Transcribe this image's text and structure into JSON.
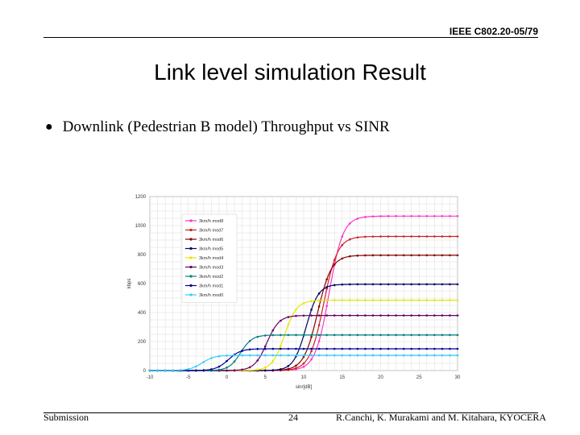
{
  "header": {
    "doc_id": "IEEE C802.20-05/79"
  },
  "slide": {
    "title": "Link level simulation Result",
    "bullet": "Downlink (Pedestrian B model) Throughput vs SINR"
  },
  "footer": {
    "left": "Submission",
    "page": "24",
    "right": "R.Canchi, K. Murakami and M. Kitahara, KYOCERA"
  },
  "chart_data": {
    "type": "line",
    "xlabel": "sinr[dB]",
    "ylabel": "kbps",
    "xlim": [
      -10,
      30
    ],
    "ylim": [
      0,
      1200
    ],
    "xticks": [
      -10,
      -5,
      0,
      5,
      10,
      15,
      20,
      25,
      30
    ],
    "yticks": [
      0,
      200,
      400,
      600,
      800,
      1000,
      1200
    ],
    "grid": true,
    "legend_position": "top-left",
    "series": [
      {
        "name": "3km/h mod8",
        "color": "#ff33cc",
        "max": 1065,
        "center": 13.3,
        "steep": 0.9
      },
      {
        "name": "3km/h mod7",
        "color": "#cc2222",
        "max": 925,
        "center": 12.6,
        "steep": 0.9
      },
      {
        "name": "3km/h mod6",
        "color": "#880000",
        "max": 795,
        "center": 11.8,
        "steep": 0.9
      },
      {
        "name": "3km/h mod5",
        "color": "#000066",
        "max": 595,
        "center": 10.3,
        "steep": 0.8
      },
      {
        "name": "3km/h mod4",
        "color": "#e6e600",
        "max": 485,
        "center": 7.5,
        "steep": 0.8
      },
      {
        "name": "3km/h mod3",
        "color": "#660066",
        "max": 380,
        "center": 5.2,
        "steep": 0.8
      },
      {
        "name": "3km/h mod2",
        "color": "#008080",
        "max": 245,
        "center": 1.8,
        "steep": 0.75
      },
      {
        "name": "3km/h mod1",
        "color": "#000099",
        "max": 150,
        "center": 0.2,
        "steep": 0.8
      },
      {
        "name": "3km/h mod0",
        "color": "#33ccff",
        "max": 105,
        "center": -3.2,
        "steep": 0.8
      }
    ]
  }
}
